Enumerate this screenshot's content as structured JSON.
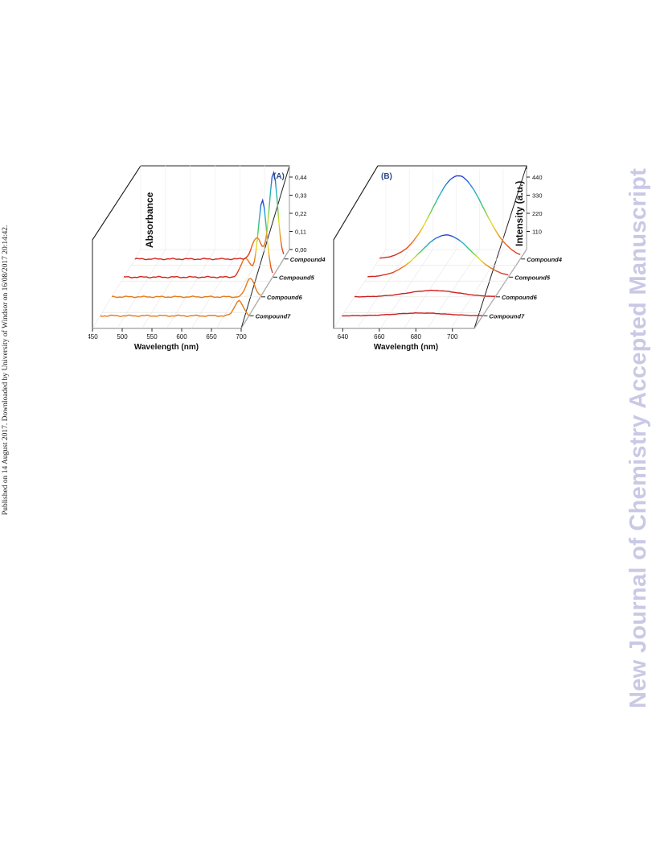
{
  "side_note": "Published on 14 August 2017. Downloaded by University of Windsor on 16/08/2017 20:14:42.",
  "watermark": "New Journal of Chemistry Accepted Manuscript",
  "chart_data": [
    {
      "type": "line",
      "panel_label": "(A)",
      "xlabel": "Wavelength (nm)",
      "ylabel": "Absorbance",
      "x_ticks": [
        "450",
        "500",
        "550",
        "600",
        "650",
        "700"
      ],
      "y_ticks": [
        "0,00",
        "0,11",
        "0,22",
        "0,33",
        "0,44"
      ],
      "xlim": [
        450,
        700
      ],
      "ylim": [
        0,
        0.44
      ],
      "series": [
        {
          "name": "Compound4",
          "peaks": [
            {
              "x": 655,
              "y": 0.11
            },
            {
              "x": 683,
              "y": 0.45
            }
          ],
          "baseline": 0.0
        },
        {
          "name": "Compound5",
          "peaks": [
            {
              "x": 655,
              "y": 0.1
            },
            {
              "x": 683,
              "y": 0.4
            }
          ],
          "baseline": 0.0
        },
        {
          "name": "Compound6",
          "peaks": [
            {
              "x": 683,
              "y": 0.1
            }
          ],
          "baseline": 0.0
        },
        {
          "name": "Compound7",
          "peaks": [
            {
              "x": 683,
              "y": 0.08
            }
          ],
          "baseline": 0.0
        }
      ]
    },
    {
      "type": "line",
      "panel_label": "(B)",
      "xlabel": "Wavelength (nm)",
      "ylabel": "Intensity (a.u.)",
      "x_ticks": [
        "640",
        "660",
        "680",
        "700"
      ],
      "y_ticks": [
        "110",
        "220",
        "330",
        "440"
      ],
      "xlim": [
        635,
        712
      ],
      "ylim": [
        0,
        440
      ],
      "series": [
        {
          "name": "Compound4",
          "peaks": [
            {
              "x": 678,
              "y": 455
            }
          ]
        },
        {
          "name": "Compound5",
          "peaks": [
            {
              "x": 678,
              "y": 230
            }
          ]
        },
        {
          "name": "Compound6",
          "peaks": [
            {
              "x": 678,
              "y": 35
            }
          ]
        },
        {
          "name": "Compound7",
          "peaks": [
            {
              "x": 678,
              "y": 15
            }
          ]
        }
      ]
    }
  ]
}
